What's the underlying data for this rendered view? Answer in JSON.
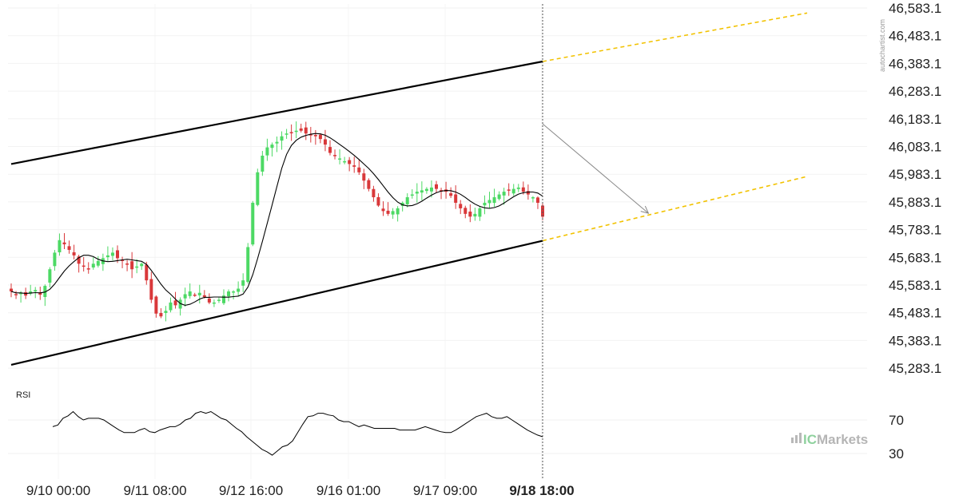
{
  "chart_data": {
    "type": "candlestick",
    "price_axis": {
      "ticks": [
        "46,583.1",
        "46,483.1",
        "46,383.1",
        "46,283.1",
        "46,183.1",
        "46,083.1",
        "45,983.1",
        "45,883.1",
        "45,783.1",
        "45,683.1",
        "45,583.1",
        "45,483.1",
        "45,383.1",
        "45,283.1"
      ],
      "range": [
        45250,
        46600
      ]
    },
    "time_axis": {
      "ticks": [
        "9/10 00:00",
        "9/11 08:00",
        "9/12 16:00",
        "9/16 01:00",
        "9/17 09:00",
        "9/18 18:00"
      ],
      "highlighted": "9/18 18:00"
    },
    "channel": {
      "upper": [
        {
          "i": 0,
          "price": 46020
        },
        {
          "i": 110,
          "price": 46390
        },
        {
          "i": 165,
          "price": 46565
        }
      ],
      "lower": [
        {
          "i": 0,
          "price": 45295
        },
        {
          "i": 110,
          "price": 45743
        },
        {
          "i": 165,
          "price": 45975
        }
      ],
      "projection_color": "#f2c200"
    },
    "forecast_arrow": {
      "from": {
        "i": 110,
        "price": 46165
      },
      "to": {
        "i": 132,
        "price": 45842
      }
    },
    "up_color": "#4cd964",
    "down_color": "#d9383a",
    "ma_color": "#000000",
    "candles_count": 111,
    "close": [
      45560,
      45550,
      45555,
      45545,
      45560,
      45565,
      45548,
      45580,
      45640,
      45700,
      45745,
      45730,
      45710,
      45690,
      45660,
      45650,
      45640,
      45660,
      45670,
      45680,
      45690,
      45700,
      45680,
      45670,
      45660,
      45640,
      45650,
      45660,
      45600,
      45530,
      45480,
      45470,
      45490,
      45520,
      45510,
      45530,
      45550,
      45560,
      45545,
      45555,
      45540,
      45520,
      45520,
      45530,
      45545,
      45560,
      45560,
      45570,
      45600,
      45720,
      45880,
      45990,
      46050,
      46080,
      46090,
      46100,
      46120,
      46130,
      46135,
      46140,
      46140,
      46130,
      46125,
      46120,
      46110,
      46090,
      46060,
      46050,
      46040,
      46030,
      46020,
      46010,
      45990,
      45960,
      45930,
      45900,
      45870,
      45850,
      45840,
      45850,
      45860,
      45880,
      45900,
      45910,
      45920,
      45925,
      45930,
      45935,
      45930,
      45925,
      45920,
      45905,
      45880,
      45860,
      45840,
      45830,
      45840,
      45860,
      45880,
      45890,
      45900,
      45910,
      45920,
      45925,
      45930,
      45935,
      45920,
      45910,
      45900,
      45880,
      45830
    ],
    "rsi": {
      "ticks": [
        "70",
        "30"
      ],
      "values": [
        62,
        64,
        72,
        75,
        80,
        74,
        70,
        72,
        72,
        72,
        70,
        66,
        62,
        58,
        55,
        55,
        55,
        58,
        60,
        56,
        55,
        58,
        60,
        62,
        62,
        65,
        70,
        72,
        78,
        80,
        78,
        80,
        76,
        72,
        70,
        65,
        60,
        56,
        50,
        45,
        40,
        35,
        32,
        28,
        33,
        38,
        40,
        45,
        55,
        65,
        74,
        75,
        78,
        78,
        76,
        75,
        70,
        68,
        68,
        65,
        62,
        64,
        62,
        60,
        60,
        60,
        60,
        60,
        58,
        58,
        58,
        58,
        60,
        62,
        60,
        58,
        56,
        55,
        55,
        58,
        62,
        66,
        70,
        74,
        76,
        78,
        74,
        72,
        72,
        74,
        70,
        66,
        62,
        58,
        55,
        52,
        50
      ]
    },
    "panel_label": "RSI",
    "attribution": "autochartist.com",
    "brand": {
      "left": "IC",
      "right": "Markets"
    }
  }
}
